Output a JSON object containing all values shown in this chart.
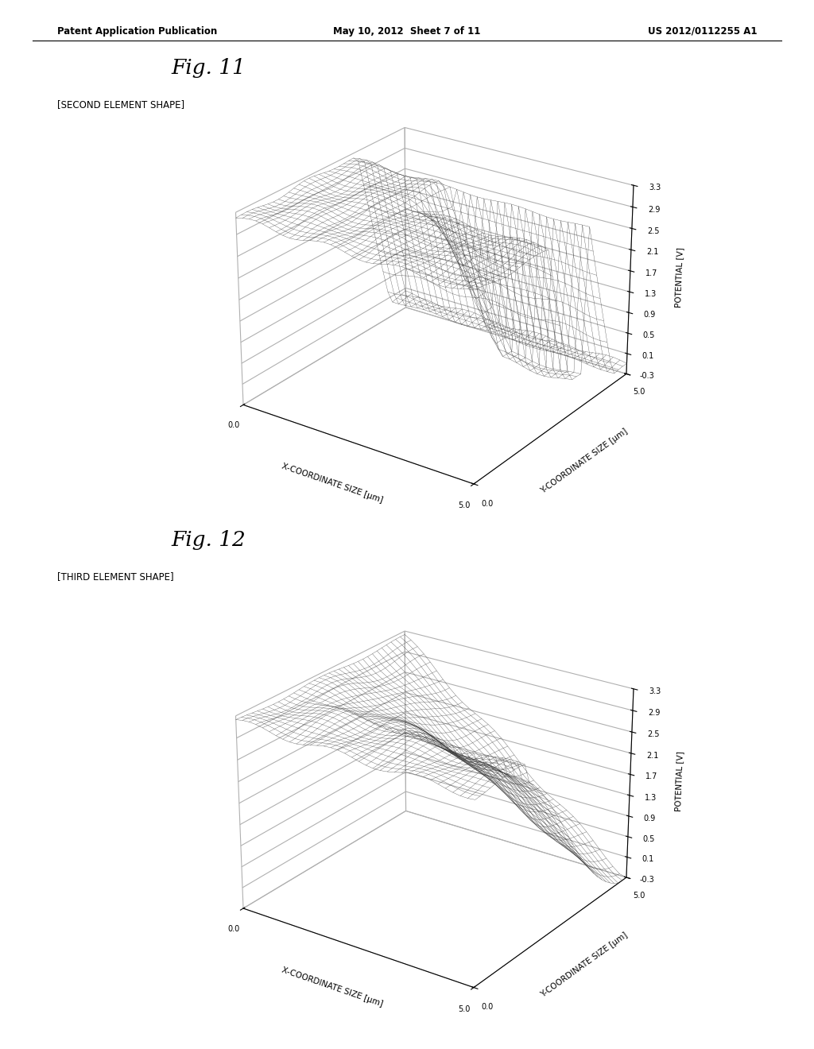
{
  "page_title_left": "Patent Application Publication",
  "page_title_mid": "May 10, 2012  Sheet 7 of 11",
  "page_title_right": "US 2012/0112255 A1",
  "fig11_title": "Fig. 11",
  "fig11_label": "[SECOND ELEMENT SHAPE]",
  "fig12_title": "Fig. 12",
  "fig12_label": "[THIRD ELEMENT SHAPE]",
  "x_axis_label": "X-COORDINATE SIZE [μm]",
  "y_axis_label": "Y-COORDINATE SIZE [μm]",
  "z_axis_label": "POTENTIAL [V]",
  "x_ticks": [
    0.0,
    5.0
  ],
  "y_ticks": [
    0.0,
    5.0
  ],
  "z_ticks": [
    -0.3,
    0.1,
    0.5,
    0.9,
    1.3,
    1.7,
    2.1,
    2.5,
    2.9,
    3.3
  ],
  "background_color": "#ffffff",
  "grid_nx": 35,
  "grid_ny": 35,
  "elev": 25,
  "azim": -55
}
